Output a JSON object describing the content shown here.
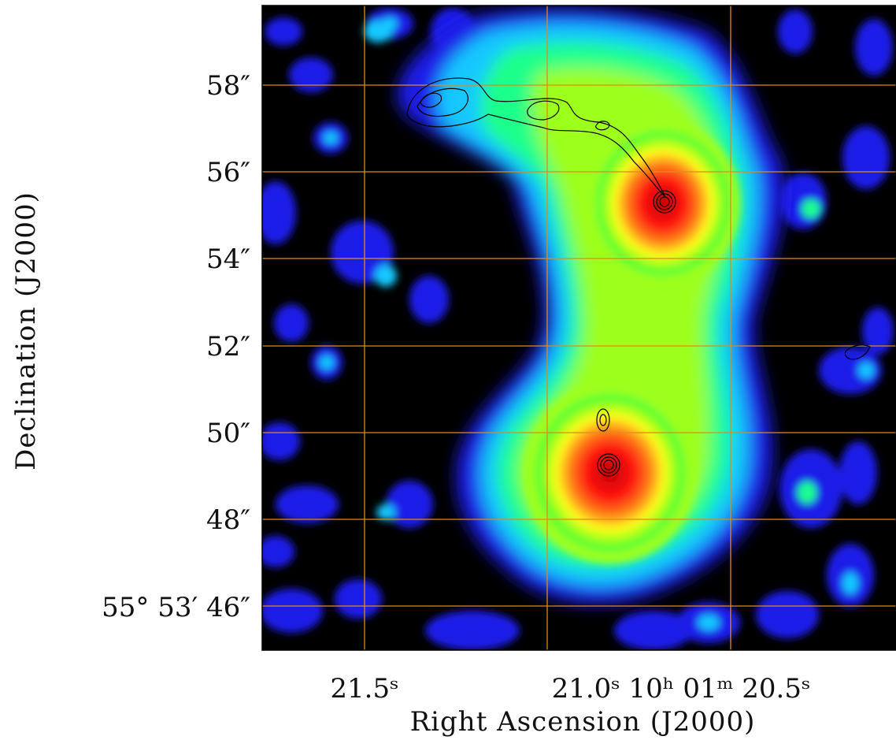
{
  "figure": {
    "x_axis_title": "Right Ascension (J2000)",
    "y_axis_title": "Declination (J2000)",
    "y_ticks": [
      {
        "label": "58″"
      },
      {
        "label": "56″"
      },
      {
        "label": "54″"
      },
      {
        "label": "52″"
      },
      {
        "label": "50″"
      },
      {
        "label": "48″"
      },
      {
        "label": "55° 53′ 46″"
      }
    ],
    "x_ticks": [
      {
        "label": "21.5ˢ"
      },
      {
        "label": "21.0ˢ 10ʰ 01ᵐ 20.5ˢ"
      }
    ],
    "grid_color": "#e08a1a",
    "colormap": [
      "#000000",
      "#1e1ee8",
      "#7f27ff",
      "#19c8ff",
      "#1fff8a",
      "#9dff1a",
      "#ffff1a",
      "#ff8a1a",
      "#ff1010"
    ]
  }
}
